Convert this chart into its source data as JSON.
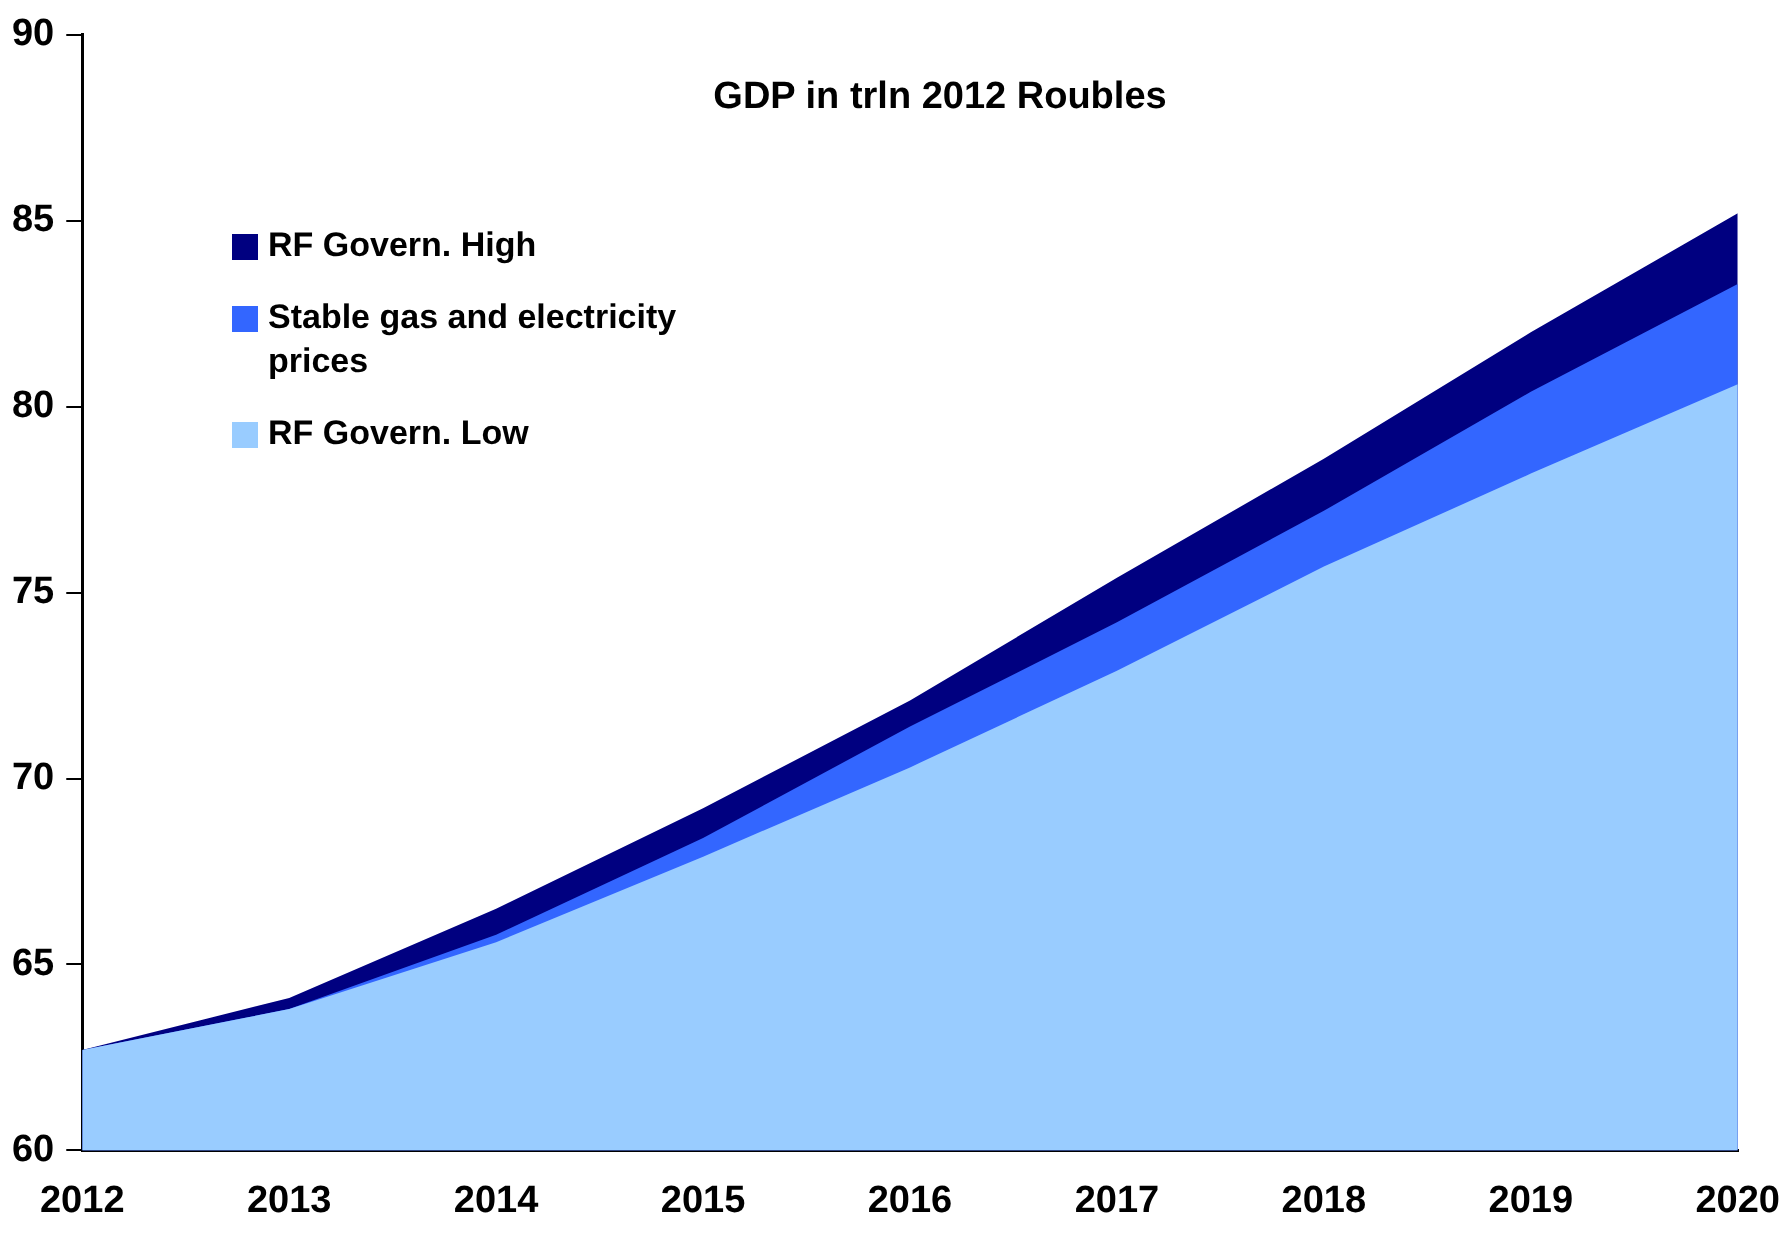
{
  "chart_data": {
    "type": "area",
    "title": "GDP in trln 2012 Roubles",
    "categories": [
      "2012",
      "2013",
      "2014",
      "2015",
      "2016",
      "2017",
      "2018",
      "2019",
      "2020"
    ],
    "series": [
      {
        "name": "RF Govern. High",
        "color": "#000080",
        "values": [
          62.7,
          64.1,
          66.5,
          69.2,
          72.1,
          75.4,
          78.6,
          82.0,
          85.2
        ]
      },
      {
        "name": "Stable gas and electricity prices",
        "color": "#3366ff",
        "values": [
          62.7,
          63.8,
          65.8,
          68.4,
          71.4,
          74.2,
          77.2,
          80.4,
          83.3
        ]
      },
      {
        "name": "RF Govern. Low",
        "color": "#99ccff",
        "values": [
          62.7,
          63.8,
          65.6,
          67.9,
          70.3,
          72.9,
          75.7,
          78.2,
          80.6
        ]
      }
    ],
    "ylim": [
      60,
      90
    ],
    "yticks": [
      60,
      65,
      70,
      75,
      80,
      85,
      90
    ],
    "grid": false,
    "legend": "top left"
  }
}
